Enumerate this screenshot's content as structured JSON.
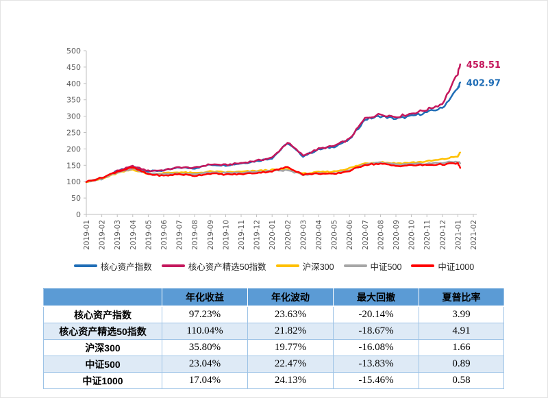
{
  "chart_data": {
    "type": "line",
    "title": "",
    "x": [
      "2019-01",
      "2019-02",
      "2019-03",
      "2019-04",
      "2019-05",
      "2019-06",
      "2019-07",
      "2019-08",
      "2019-09",
      "2019-10",
      "2019-11",
      "2019-12",
      "2020-01",
      "2020-02",
      "2020-03",
      "2020-04",
      "2020-05",
      "2020-06",
      "2020-07",
      "2020-08",
      "2020-09",
      "2020-10",
      "2020-11",
      "2020-12",
      "2021-01",
      "2021-02"
    ],
    "y_ticks": [
      "0",
      "50",
      "100",
      "150",
      "200",
      "250",
      "300",
      "350",
      "400",
      "450",
      "500"
    ],
    "ylim": [
      0,
      500
    ],
    "ytick_step": 50,
    "grid": false,
    "legend_position": "bottom",
    "series": [
      {
        "name": "核心资产指数",
        "color": "#1F6DB6",
        "end_label": "402.97",
        "values": [
          100,
          108,
          133,
          146,
          132,
          134,
          143,
          141,
          152,
          150,
          156,
          163,
          172,
          218,
          178,
          198,
          207,
          228,
          290,
          300,
          292,
          300,
          312,
          325,
          385,
          402.97
        ]
      },
      {
        "name": "核心资产精选50指数",
        "color": "#C4175C",
        "end_label": "458.51",
        "values": [
          100,
          108,
          133,
          147,
          133,
          135,
          144,
          142,
          153,
          151,
          157,
          164,
          173,
          220,
          180,
          200,
          209,
          230,
          293,
          306,
          298,
          308,
          320,
          338,
          430,
          458.51
        ]
      },
      {
        "name": "沪深300",
        "color": "#FFC000",
        "values": [
          100,
          108,
          126,
          137,
          124,
          126,
          129,
          126,
          131,
          129,
          130,
          133,
          136,
          138,
          124,
          129,
          131,
          141,
          156,
          160,
          156,
          158,
          162,
          168,
          178,
          189
        ]
      },
      {
        "name": "中证500",
        "color": "#A6A6A6",
        "values": [
          100,
          110,
          129,
          140,
          125,
          123,
          126,
          123,
          128,
          126,
          127,
          130,
          133,
          135,
          121,
          126,
          125,
          135,
          152,
          158,
          152,
          153,
          155,
          158,
          161,
          156
        ]
      },
      {
        "name": "中证1000",
        "color": "#FF0000",
        "values": [
          100,
          112,
          131,
          143,
          123,
          118,
          123,
          118,
          125,
          122,
          123,
          127,
          132,
          145,
          122,
          125,
          123,
          133,
          152,
          155,
          148,
          150,
          151,
          153,
          156,
          142
        ]
      }
    ]
  },
  "table": {
    "headers": [
      "",
      "年化收益",
      "年化波动",
      "最大回撤",
      "夏普比率"
    ],
    "rows": [
      {
        "label": "核心资产指数",
        "values": [
          "97.23%",
          "23.63%",
          "-20.14%",
          "3.99"
        ]
      },
      {
        "label": "核心资产精选50指数",
        "values": [
          "110.04%",
          "21.82%",
          "-18.67%",
          "4.91"
        ]
      },
      {
        "label": "沪深300",
        "values": [
          "35.80%",
          "19.77%",
          "-16.08%",
          "1.66"
        ]
      },
      {
        "label": "中证500",
        "values": [
          "23.04%",
          "22.47%",
          "-13.83%",
          "0.89"
        ]
      },
      {
        "label": "中证1000",
        "values": [
          "17.04%",
          "24.13%",
          "-15.46%",
          "0.58"
        ]
      }
    ]
  },
  "colors": {
    "table_header_bg": "#5B9BD5",
    "table_stripe_bg": "#DEEAF6",
    "table_border": "#9DC3E6",
    "axis_line": "#BFBFBF",
    "tick_label": "#595959"
  }
}
